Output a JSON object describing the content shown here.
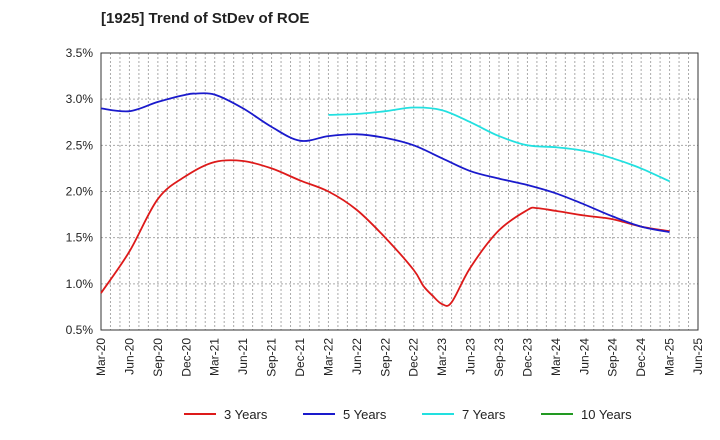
{
  "chart_data": {
    "type": "line",
    "title": "[1925]  Trend of StDev of ROE",
    "xlabel": "",
    "ylabel": "",
    "y_ticks": [
      "0.5%",
      "1.0%",
      "1.5%",
      "2.0%",
      "2.5%",
      "3.0%",
      "3.5%"
    ],
    "ylim": [
      0.5,
      3.5
    ],
    "x_tick_labels": [
      "Mar-20",
      "Jun-20",
      "Sep-20",
      "Dec-20",
      "Mar-21",
      "Jun-21",
      "Sep-21",
      "Dec-21",
      "Mar-22",
      "Jun-22",
      "Sep-22",
      "Dec-22",
      "Mar-23",
      "Jun-23",
      "Sep-23",
      "Dec-23",
      "Mar-24",
      "Jun-24",
      "Sep-24",
      "Dec-24",
      "Mar-25",
      "Jun-25"
    ],
    "grid": true,
    "legend_position": "bottom",
    "series": [
      {
        "name": "3 Years",
        "color": "#dd1a1a",
        "x": [
          "Mar-20",
          "Jun-20",
          "Sep-20",
          "Dec-20",
          "Mar-21",
          "Jun-21",
          "Sep-21",
          "Dec-21",
          "Mar-22",
          "Jun-22",
          "Sep-22",
          "Dec-22",
          "Jan-23",
          "Feb-23",
          "Mar-23",
          "Apr-23",
          "Jun-23",
          "Sep-23",
          "Dec-23",
          "Jan-24",
          "Mar-24",
          "Jun-24",
          "Sep-24",
          "Dec-24",
          "Mar-25"
        ],
        "values": [
          0.9,
          1.35,
          1.92,
          2.17,
          2.32,
          2.33,
          2.25,
          2.12,
          2.0,
          1.8,
          1.5,
          1.15,
          0.98,
          0.87,
          0.78,
          0.8,
          1.18,
          1.58,
          1.8,
          1.82,
          1.79,
          1.74,
          1.7,
          1.62,
          1.57
        ]
      },
      {
        "name": "5 Years",
        "color": "#1a1acc",
        "x": [
          "Mar-20",
          "Jun-20",
          "Sep-20",
          "Dec-20",
          "Jan-21",
          "Mar-21",
          "Jun-21",
          "Sep-21",
          "Dec-21",
          "Mar-22",
          "Jun-22",
          "Sep-22",
          "Dec-22",
          "Mar-23",
          "Jun-23",
          "Sep-23",
          "Dec-23",
          "Mar-24",
          "Jun-24",
          "Sep-24",
          "Dec-24",
          "Mar-25"
        ],
        "values": [
          2.9,
          2.87,
          2.97,
          3.05,
          3.06,
          3.05,
          2.9,
          2.7,
          2.55,
          2.6,
          2.62,
          2.58,
          2.5,
          2.36,
          2.22,
          2.14,
          2.07,
          1.98,
          1.86,
          1.73,
          1.62,
          1.56
        ]
      },
      {
        "name": "7 Years",
        "color": "#22e0e0",
        "x": [
          "Mar-22",
          "Jun-22",
          "Sep-22",
          "Dec-22",
          "Mar-23",
          "Jun-23",
          "Sep-23",
          "Dec-23",
          "Mar-24",
          "Jun-24",
          "Sep-24",
          "Dec-24",
          "Mar-25"
        ],
        "values": [
          2.83,
          2.84,
          2.87,
          2.91,
          2.88,
          2.75,
          2.6,
          2.5,
          2.48,
          2.44,
          2.36,
          2.25,
          2.11
        ]
      },
      {
        "name": "10 Years",
        "color": "#229922",
        "x": [],
        "values": []
      }
    ]
  }
}
